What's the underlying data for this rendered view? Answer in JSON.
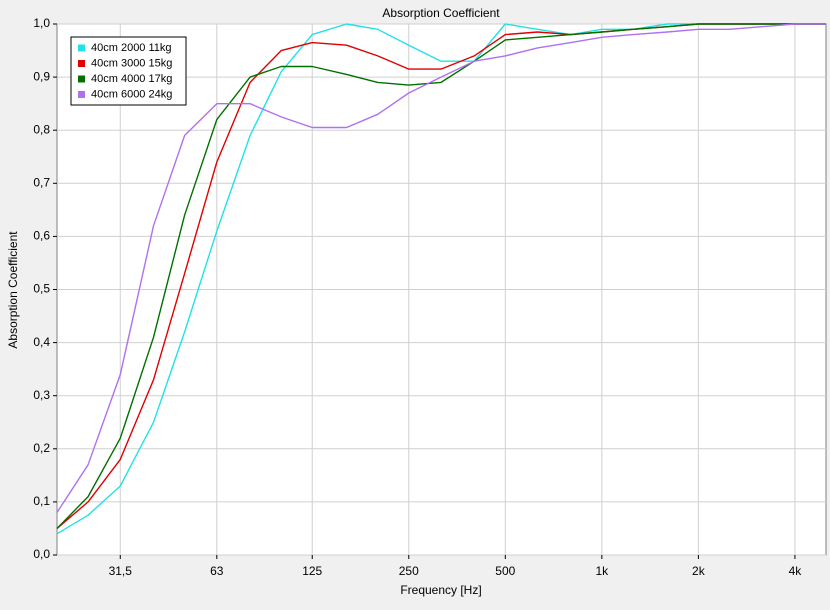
{
  "chart_data": {
    "type": "line",
    "title": "Absorption Coefficient",
    "xlabel": "Frequency [Hz]",
    "ylabel": "Absorption Coefficient",
    "xscale": "log",
    "grid": true,
    "legend": "upper left",
    "xlim": [
      20,
      5000
    ],
    "ylim": [
      0,
      1
    ],
    "xticks": [
      {
        "value": 31.5,
        "label": "31,5"
      },
      63,
      125,
      250,
      500,
      {
        "value": 1000,
        "label": "1k"
      },
      {
        "value": 2000,
        "label": "2k"
      },
      {
        "value": 4000,
        "label": "4k"
      }
    ],
    "yticks": [
      {
        "value": 0,
        "label": "0,0"
      },
      {
        "value": 0.1,
        "label": "0,1"
      },
      {
        "value": 0.2,
        "label": "0,2"
      },
      {
        "value": 0.3,
        "label": "0,3"
      },
      {
        "value": 0.4,
        "label": "0,4"
      },
      {
        "value": 0.5,
        "label": "0,5"
      },
      {
        "value": 0.6,
        "label": "0,6"
      },
      {
        "value": 0.7,
        "label": "0,7"
      },
      {
        "value": 0.8,
        "label": "0,8"
      },
      {
        "value": 0.9,
        "label": "0,9"
      },
      {
        "value": 1,
        "label": "1,0"
      }
    ],
    "x": [
      20,
      25,
      31.5,
      40,
      50,
      63,
      80,
      100,
      125,
      160,
      200,
      250,
      315,
      400,
      500,
      630,
      800,
      1000,
      1250,
      1600,
      2000,
      2500,
      3150,
      4000,
      5000
    ],
    "series": [
      {
        "name": "40cm 2000 11kg",
        "color": "#22e0e8",
        "values": [
          0.04,
          0.075,
          0.13,
          0.25,
          0.42,
          0.61,
          0.79,
          0.91,
          0.98,
          1.0,
          0.99,
          0.96,
          0.93,
          0.93,
          1.0,
          0.99,
          0.98,
          0.99,
          0.99,
          1.0,
          1.0,
          1.0,
          1.0,
          1.0,
          1.0
        ]
      },
      {
        "name": "40cm 3000 15kg",
        "color": "#e00000",
        "values": [
          0.05,
          0.1,
          0.18,
          0.33,
          0.53,
          0.74,
          0.89,
          0.95,
          0.965,
          0.96,
          0.94,
          0.915,
          0.915,
          0.94,
          0.98,
          0.985,
          0.98,
          0.985,
          0.99,
          0.995,
          1.0,
          1.0,
          1.0,
          1.0,
          1.0
        ]
      },
      {
        "name": "40cm 4000 17kg",
        "color": "#007000",
        "values": [
          0.05,
          0.11,
          0.22,
          0.41,
          0.64,
          0.82,
          0.9,
          0.92,
          0.92,
          0.905,
          0.89,
          0.885,
          0.89,
          0.93,
          0.97,
          0.975,
          0.98,
          0.985,
          0.99,
          0.995,
          1.0,
          1.0,
          1.0,
          1.0,
          1.0
        ]
      },
      {
        "name": "40cm 6000 24kg",
        "color": "#b070f0",
        "values": [
          0.08,
          0.17,
          0.34,
          0.62,
          0.79,
          0.85,
          0.85,
          0.825,
          0.805,
          0.805,
          0.83,
          0.87,
          0.9,
          0.93,
          0.94,
          0.955,
          0.965,
          0.975,
          0.98,
          0.985,
          0.99,
          0.99,
          0.995,
          1.0,
          1.0
        ]
      }
    ]
  }
}
